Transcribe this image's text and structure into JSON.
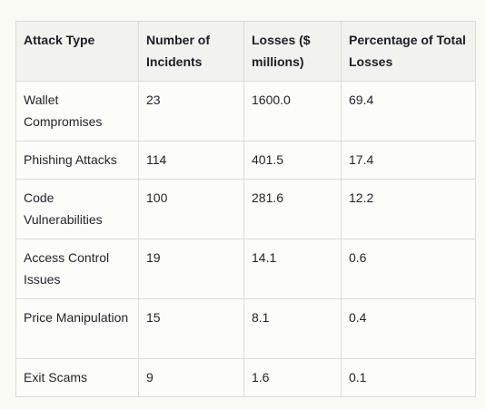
{
  "table": {
    "headers": [
      "Attack Type",
      "Number of Incidents",
      "Losses ($ millions)",
      "Percentage of Total Losses"
    ],
    "rows": [
      [
        "Wallet Compromises",
        "23",
        "1600.0",
        "69.4"
      ],
      [
        "Phishing Attacks",
        "114",
        "401.5",
        "17.4"
      ],
      [
        "Code Vulnerabilities",
        "100",
        "281.6",
        "12.2"
      ],
      [
        "Access Control Issues",
        "19",
        "14.1",
        "0.6"
      ],
      [
        "Price Manipulation",
        "15",
        "8.1",
        "0.4"
      ],
      [
        "Exit Scams",
        "9",
        "1.6",
        "0.1"
      ]
    ]
  }
}
